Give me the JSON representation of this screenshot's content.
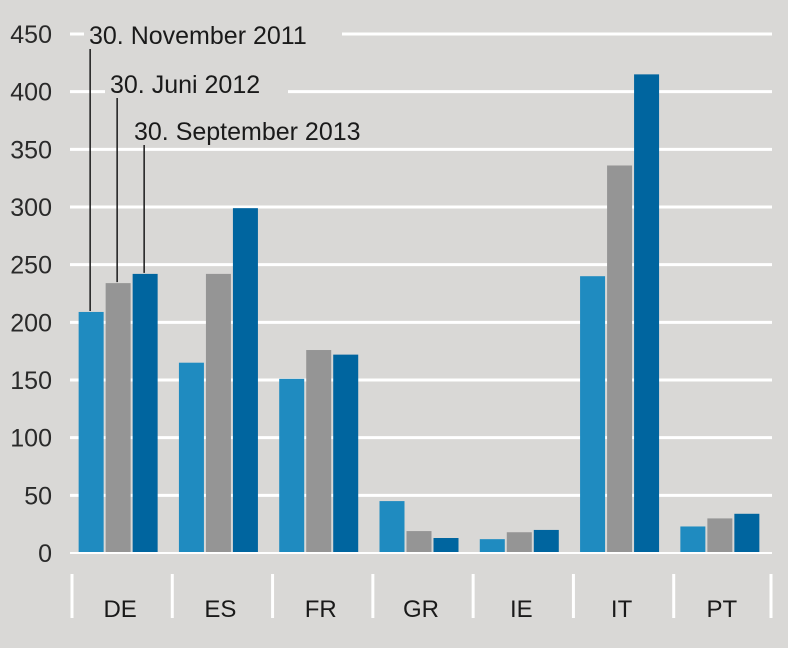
{
  "chart_data": {
    "type": "bar",
    "title": "",
    "xlabel": "",
    "ylabel": "",
    "ylim": [
      0,
      450
    ],
    "yticks": [
      0,
      50,
      100,
      150,
      200,
      250,
      300,
      350,
      400,
      450
    ],
    "grid": true,
    "legend_placement": "top-left, callout labels pointing to DE bars",
    "categories": [
      "DE",
      "ES",
      "FR",
      "GR",
      "IE",
      "IT",
      "PT"
    ],
    "series": [
      {
        "name": "30. November 2011",
        "color": "#1f8bc0",
        "values": [
          209,
          165,
          151,
          45,
          12,
          240,
          23
        ]
      },
      {
        "name": "30. Juni 2012",
        "color": "#959595",
        "values": [
          234,
          242,
          176,
          19,
          18,
          336,
          30
        ]
      },
      {
        "name": "30. September 2013",
        "color": "#00659f",
        "values": [
          242,
          299,
          172,
          13,
          20,
          415,
          34
        ]
      }
    ]
  }
}
